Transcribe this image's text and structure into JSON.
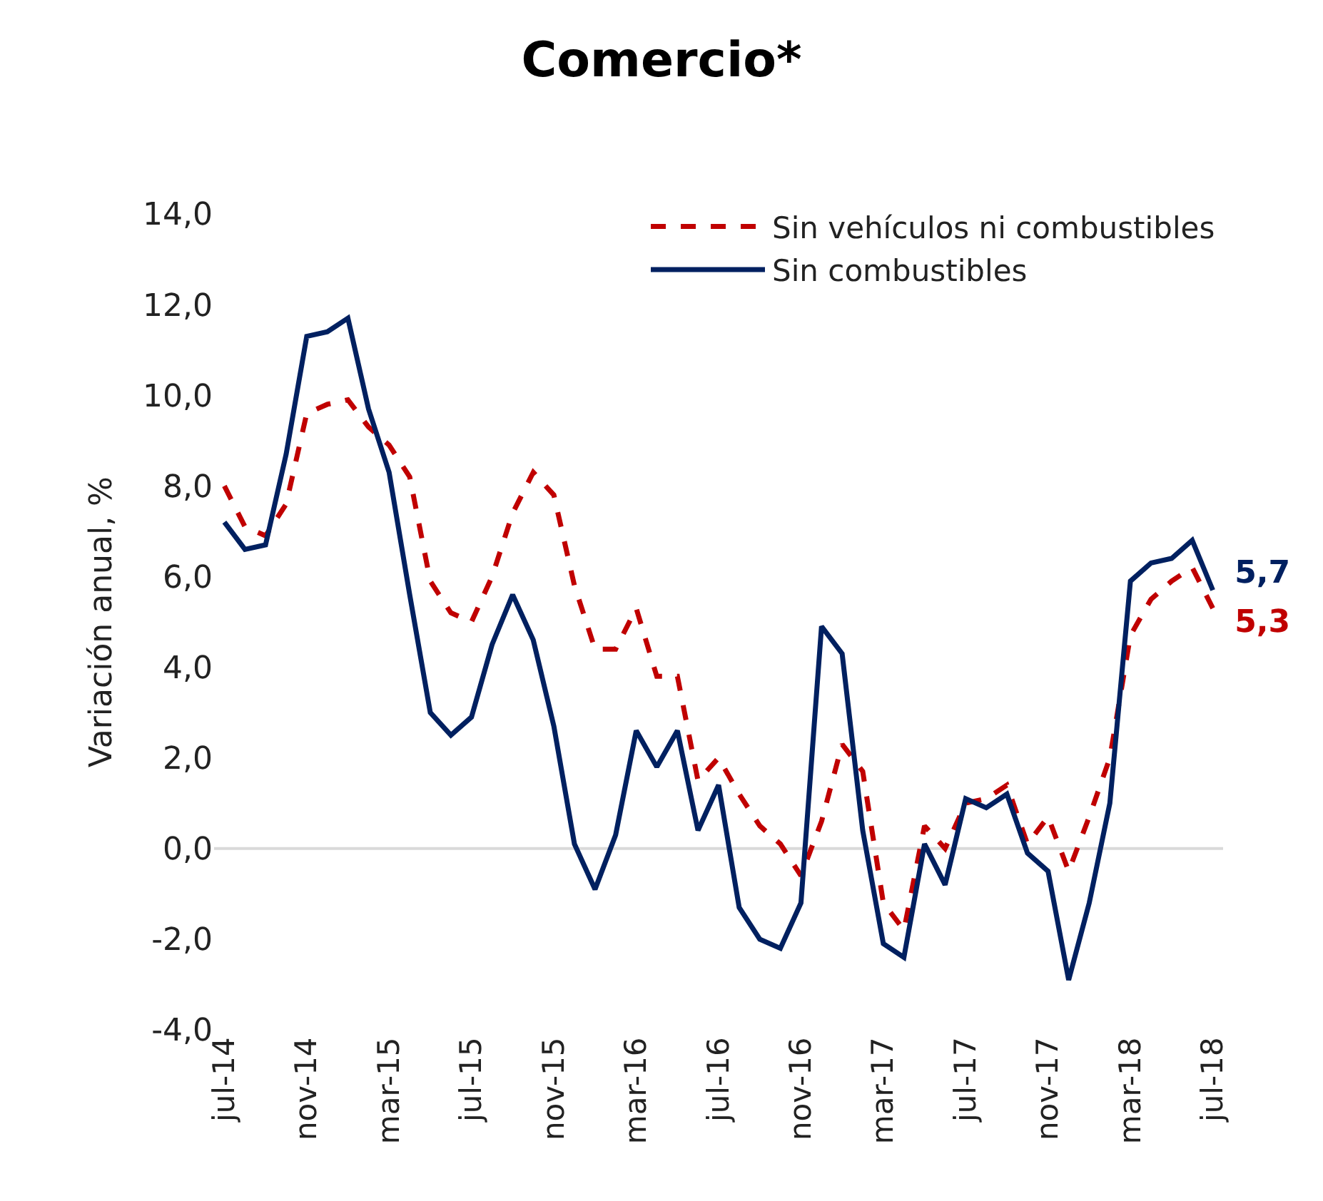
{
  "chart_data": {
    "type": "line",
    "title": "Comercio*",
    "ylabel": "Variación anual, %",
    "categories": [
      "jul-14",
      null,
      null,
      null,
      "nov-14",
      null,
      null,
      null,
      "mar-15",
      null,
      null,
      null,
      "jul-15",
      null,
      null,
      null,
      "nov-15",
      null,
      null,
      null,
      "mar-16",
      null,
      null,
      null,
      "jul-16",
      null,
      null,
      null,
      "nov-16",
      null,
      null,
      null,
      "mar-17",
      null,
      null,
      null,
      "jul-17",
      null,
      null,
      null,
      "nov-17",
      null,
      null,
      null,
      "mar-18",
      null,
      null,
      null,
      "jul-18"
    ],
    "series": [
      {
        "name": "Sin vehículos ni combustibles",
        "color": "#c00000",
        "line_style": "dashed",
        "values": [
          8.0,
          7.1,
          6.9,
          7.6,
          9.6,
          9.8,
          9.9,
          9.3,
          8.9,
          8.2,
          5.9,
          5.2,
          5.0,
          6.0,
          7.4,
          8.3,
          7.8,
          5.8,
          4.4,
          4.4,
          5.3,
          3.8,
          3.8,
          1.5,
          2.0,
          1.2,
          0.5,
          0.1,
          -0.6,
          0.6,
          2.3,
          1.7,
          -1.2,
          -1.8,
          0.5,
          0.0,
          1.0,
          1.1,
          1.4,
          0.1,
          0.7,
          -0.5,
          0.7,
          2.0,
          4.7,
          5.5,
          5.9,
          6.2,
          5.3
        ],
        "value_labels": [
          null,
          null,
          null,
          null,
          null,
          null,
          null,
          null,
          null,
          null,
          null,
          null,
          null,
          null,
          null,
          null,
          null,
          null,
          null,
          null,
          null,
          null,
          null,
          null,
          null,
          null,
          null,
          null,
          null,
          null,
          null,
          null,
          null,
          null,
          null,
          null,
          null,
          null,
          null,
          null,
          null,
          null,
          null,
          null,
          null,
          null,
          null,
          null,
          "5,3"
        ]
      },
      {
        "name": "Sin combustibles",
        "color": "#002060",
        "line_style": "solid",
        "values": [
          7.2,
          6.6,
          6.7,
          8.7,
          11.3,
          11.4,
          11.7,
          9.7,
          8.3,
          5.6,
          3.0,
          2.5,
          2.9,
          4.5,
          5.6,
          4.6,
          2.7,
          0.1,
          -0.9,
          0.3,
          2.6,
          1.8,
          2.6,
          0.4,
          1.4,
          -1.3,
          -2.0,
          -2.2,
          -1.2,
          4.9,
          4.3,
          0.4,
          -2.1,
          -2.4,
          0.1,
          -0.8,
          1.1,
          0.9,
          1.2,
          -0.1,
          -0.5,
          -2.9,
          -1.2,
          1.0,
          5.9,
          6.3,
          6.4,
          6.8,
          5.7
        ],
        "value_labels": [
          null,
          null,
          null,
          null,
          null,
          null,
          null,
          null,
          null,
          null,
          null,
          null,
          null,
          null,
          null,
          null,
          null,
          null,
          null,
          null,
          null,
          null,
          null,
          null,
          null,
          null,
          null,
          null,
          null,
          null,
          null,
          null,
          null,
          null,
          null,
          null,
          null,
          null,
          null,
          null,
          null,
          null,
          null,
          null,
          null,
          null,
          null,
          null,
          "5,7"
        ]
      }
    ],
    "ylim": [
      -4.0,
      14.0
    ],
    "yticks": [
      {
        "value": -4,
        "label": "-4,0"
      },
      {
        "value": -2,
        "label": "-2,0"
      },
      {
        "value": 0,
        "label": "0,0"
      },
      {
        "value": 2,
        "label": "2,0"
      },
      {
        "value": 4,
        "label": "4,0"
      },
      {
        "value": 6,
        "label": "6,0"
      },
      {
        "value": 8,
        "label": "8,0"
      },
      {
        "value": 10,
        "label": "10,0"
      },
      {
        "value": 12,
        "label": "12,0"
      },
      {
        "value": 14,
        "label": "14,0"
      }
    ],
    "ref_lines": [
      {
        "axis": "y",
        "value": 0,
        "color": "#d9d9d9"
      }
    ],
    "grid": false,
    "legend": "top right",
    "marker": "none"
  }
}
